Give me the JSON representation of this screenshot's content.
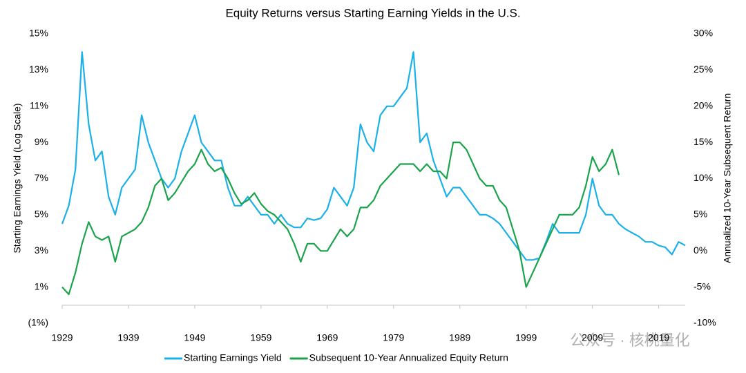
{
  "chart_data": {
    "type": "line",
    "title": "Equity Returns versus Starting Earning Yields in the U.S.",
    "y_label": "Starting Earnings Yield (Log Scale)",
    "y2_label": "Annualized 10-Year Subsequent Return",
    "watermark": "公众号 · 核桃量化",
    "legend": "bottom",
    "x": [
      1929,
      1930,
      1931,
      1932,
      1933,
      1934,
      1935,
      1936,
      1937,
      1938,
      1939,
      1940,
      1941,
      1942,
      1943,
      1944,
      1945,
      1946,
      1947,
      1948,
      1949,
      1950,
      1951,
      1952,
      1953,
      1954,
      1955,
      1956,
      1957,
      1958,
      1959,
      1960,
      1961,
      1962,
      1963,
      1964,
      1965,
      1966,
      1967,
      1968,
      1969,
      1970,
      1971,
      1972,
      1973,
      1974,
      1975,
      1976,
      1977,
      1978,
      1979,
      1980,
      1981,
      1982,
      1983,
      1984,
      1985,
      1986,
      1987,
      1988,
      1989,
      1990,
      1991,
      1992,
      1993,
      1994,
      1995,
      1996,
      1997,
      1998,
      1999,
      2000,
      2001,
      2002,
      2003,
      2004,
      2005,
      2006,
      2007,
      2008,
      2009,
      2010,
      2011,
      2012,
      2013,
      2014,
      2015,
      2016,
      2017,
      2018,
      2019,
      2020,
      2021,
      2022,
      2023
    ],
    "xlim": [
      1929,
      2023
    ],
    "xticks": [
      1929,
      1939,
      1949,
      1959,
      1969,
      1979,
      1989,
      1999,
      2009,
      2019
    ],
    "ylim": [
      -1,
      15
    ],
    "yticks": [
      {
        "value": -1,
        "label": "(1%)"
      },
      {
        "value": 1,
        "label": "1%"
      },
      {
        "value": 3,
        "label": "3%"
      },
      {
        "value": 5,
        "label": "5%"
      },
      {
        "value": 7,
        "label": "7%"
      },
      {
        "value": 9,
        "label": "9%"
      },
      {
        "value": 11,
        "label": "11%"
      },
      {
        "value": 13,
        "label": "13%"
      },
      {
        "value": 15,
        "label": "15%"
      }
    ],
    "y2lim": [
      -10,
      30
    ],
    "y2ticks": [
      {
        "value": -10,
        "label": "-10%"
      },
      {
        "value": -5,
        "label": "-5%"
      },
      {
        "value": 0,
        "label": "0%"
      },
      {
        "value": 5,
        "label": "5%"
      },
      {
        "value": 10,
        "label": "10%"
      },
      {
        "value": 15,
        "label": "15%"
      },
      {
        "value": 20,
        "label": "20%"
      },
      {
        "value": 25,
        "label": "25%"
      },
      {
        "value": 30,
        "label": "30%"
      }
    ],
    "series": [
      {
        "name": "Starting Earnings Yield",
        "color": "#1ab0e8",
        "values": [
          4.5,
          5.5,
          7.5,
          14,
          10,
          8,
          8.5,
          6,
          5,
          6.5,
          7,
          7.5,
          10.5,
          9,
          8,
          7,
          6.5,
          7,
          8.5,
          9.5,
          10.5,
          9,
          8.5,
          8,
          8,
          6.5,
          5.5,
          5.5,
          6,
          5.5,
          5,
          5,
          4.5,
          5,
          4.5,
          4.3,
          4.3,
          4.8,
          4.7,
          4.8,
          5.3,
          6.5,
          6,
          5.5,
          6.5,
          10,
          9,
          8.5,
          10.5,
          11,
          11,
          11.5,
          12,
          14,
          9,
          9.5,
          8,
          7,
          6,
          6.5,
          6.5,
          6,
          5.5,
          5,
          5,
          4.8,
          4.5,
          4,
          3.5,
          3,
          2.5,
          2.5,
          2.6,
          3.5,
          4.5,
          4,
          4,
          4,
          4,
          5,
          7,
          5.5,
          5,
          5,
          4.5,
          4.2,
          4,
          3.8,
          3.5,
          3.5,
          3.3,
          3.2,
          2.8,
          3.5,
          3.3
        ]
      },
      {
        "name": "Subsequent 10-Year Annualized Equity Return",
        "color": "#1aa34a",
        "axis": "y2",
        "values": [
          -5,
          -6,
          -3,
          1,
          4,
          2,
          1.5,
          2,
          -1.5,
          2,
          2.5,
          3,
          4,
          6,
          9,
          10,
          7,
          8,
          9.5,
          11,
          12,
          14,
          12,
          11,
          11.5,
          10,
          8,
          6.5,
          7,
          8,
          6.5,
          5.5,
          5,
          4,
          3,
          1,
          -1.5,
          1,
          1,
          0,
          0,
          1.5,
          3,
          2,
          3,
          6,
          6,
          7,
          9,
          10,
          11,
          12,
          12,
          12,
          11,
          12,
          11,
          11,
          10,
          15,
          15,
          14,
          12,
          10,
          9,
          9,
          7,
          6,
          3,
          0,
          -5,
          -3,
          -1,
          1,
          3,
          5,
          5,
          5,
          6,
          9,
          13,
          11,
          12,
          14,
          10.5,
          null,
          null,
          null,
          null,
          null,
          null,
          null,
          null,
          null,
          null
        ]
      }
    ]
  }
}
